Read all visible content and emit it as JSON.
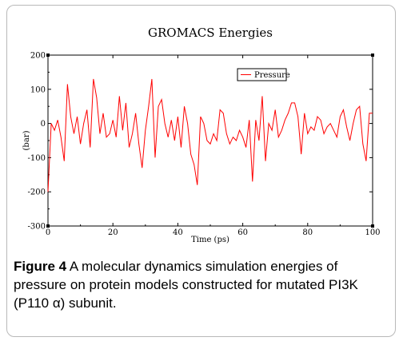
{
  "chart_data": {
    "type": "line",
    "title": "GROMACS Energies",
    "xlabel": "Time (ps)",
    "ylabel": "(bar)",
    "xlim": [
      0,
      100
    ],
    "ylim": [
      -300,
      200
    ],
    "xticks": [
      0,
      20,
      40,
      60,
      80,
      100
    ],
    "yticks": [
      -300,
      -200,
      -100,
      0,
      100,
      200
    ],
    "legend": "top-right",
    "series": [
      {
        "name": "Pressure",
        "color": "#ff0000",
        "x": [
          0,
          1,
          2,
          3,
          4,
          5,
          6,
          7,
          8,
          9,
          10,
          11,
          12,
          13,
          14,
          15,
          16,
          17,
          18,
          19,
          20,
          21,
          22,
          23,
          24,
          25,
          26,
          27,
          28,
          29,
          30,
          31,
          32,
          33,
          34,
          35,
          36,
          37,
          38,
          39,
          40,
          41,
          42,
          43,
          44,
          45,
          46,
          47,
          48,
          49,
          50,
          51,
          52,
          53,
          54,
          55,
          56,
          57,
          58,
          59,
          60,
          61,
          62,
          63,
          64,
          65,
          66,
          67,
          68,
          69,
          70,
          71,
          72,
          73,
          74,
          75,
          76,
          77,
          78,
          79,
          80,
          81,
          82,
          83,
          84,
          85,
          86,
          87,
          88,
          89,
          90,
          91,
          92,
          93,
          94,
          95,
          96,
          97,
          98,
          99,
          100
        ],
        "y": [
          -200,
          0,
          -20,
          10,
          -40,
          -110,
          115,
          20,
          -30,
          20,
          -60,
          0,
          40,
          -70,
          130,
          75,
          -30,
          30,
          -40,
          -30,
          10,
          -40,
          80,
          -20,
          60,
          -70,
          -30,
          30,
          -60,
          -130,
          -20,
          50,
          130,
          -100,
          50,
          70,
          0,
          -40,
          10,
          -50,
          20,
          -70,
          50,
          0,
          -90,
          -120,
          -180,
          20,
          0,
          -50,
          -60,
          -30,
          -50,
          40,
          30,
          -30,
          -60,
          -40,
          -50,
          -20,
          -40,
          -70,
          10,
          -170,
          10,
          -50,
          80,
          -110,
          0,
          -20,
          40,
          -40,
          -20,
          10,
          30,
          60,
          60,
          20,
          -90,
          30,
          -30,
          -10,
          -20,
          20,
          10,
          -30,
          -10,
          0,
          -20,
          -40,
          20,
          40,
          -10,
          -50,
          0,
          40,
          50,
          -60,
          -110,
          30,
          30
        ]
      }
    ]
  },
  "caption": {
    "label": "Figure 4",
    "text": " A molecular dynamics simulation energies of pressure on protein models constructed for mutated PI3K (P110 α) subunit."
  }
}
